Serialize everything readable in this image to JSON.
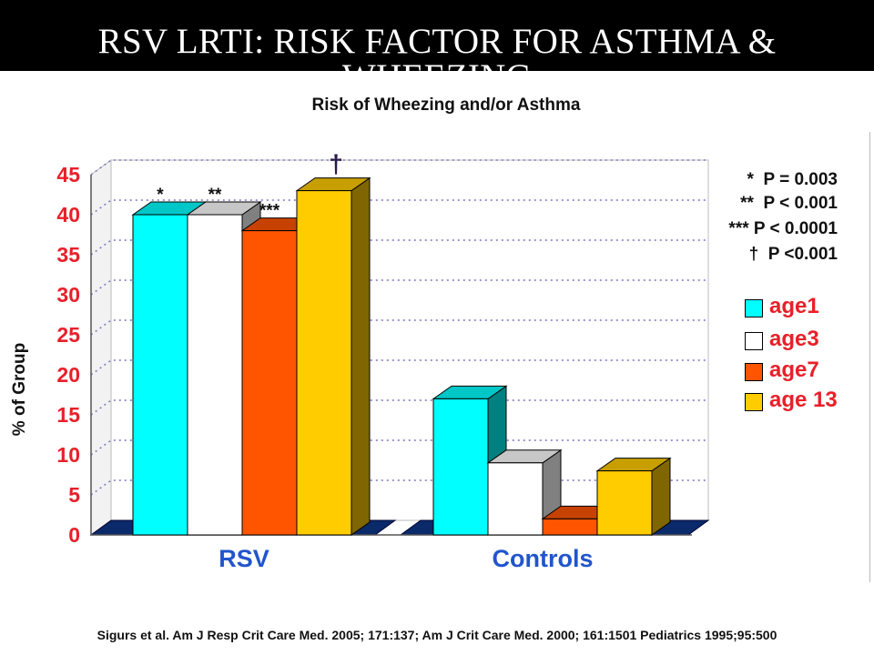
{
  "slide": {
    "title": "RSV LRTI: RISK FACTOR FOR ASTHMA & WHEEZING",
    "citation": "Sigurs et al. Am J Resp Crit Care Med. 2005; 171:137; Am J Crit Care Med. 2000; 161:1501 Pediatrics 1995;95:500"
  },
  "chart_data": {
    "type": "bar",
    "title": "Risk of Wheezing and/or Asthma",
    "ylabel": "% of Group",
    "xlabel": "",
    "ylim": [
      0,
      45
    ],
    "yticks": [
      "0",
      "5",
      "10",
      "15",
      "20",
      "25",
      "30",
      "35",
      "40",
      "45"
    ],
    "categories": [
      "RSV",
      "Controls"
    ],
    "series": [
      {
        "name": "age1",
        "values": [
          40,
          17
        ],
        "color": "#00ffff"
      },
      {
        "name": "age3",
        "values": [
          40,
          9
        ],
        "color": "#ffffff"
      },
      {
        "name": "age7",
        "values": [
          38,
          2
        ],
        "color": "#ff5500"
      },
      {
        "name": "age 13",
        "values": [
          43,
          8
        ],
        "color": "#ffcc00"
      }
    ],
    "bar_annotations": [
      "*",
      "**",
      "***",
      "†"
    ],
    "significance": [
      {
        "symbol": "*",
        "text": "P = 0.003"
      },
      {
        "symbol": "**",
        "text": "P < 0.001"
      },
      {
        "symbol": "***",
        "text": "P < 0.0001"
      },
      {
        "symbol": "†",
        "text": "P <0.001"
      }
    ],
    "grid": true,
    "legend_position": "right",
    "colors": {
      "axis_labels": "#e8202a",
      "category_labels": "#2255cc",
      "floor": "#0a2a6a",
      "grid": "#7777bb"
    }
  }
}
